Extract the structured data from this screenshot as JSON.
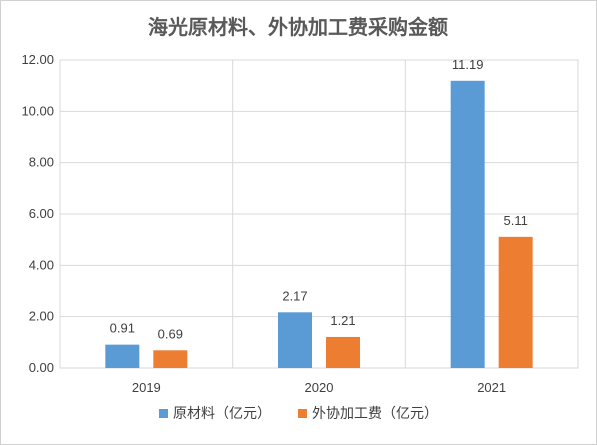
{
  "chart_data": {
    "type": "bar",
    "title": "海光原材料、外协加工费采购金额",
    "categories": [
      "2019",
      "2020",
      "2021"
    ],
    "ylim": [
      0,
      12
    ],
    "yticks": [
      "0.00",
      "2.00",
      "4.00",
      "6.00",
      "8.00",
      "10.00",
      "12.00"
    ],
    "grid": true,
    "legend_position": "bottom",
    "series": [
      {
        "name": "原材料（亿元）",
        "values": [
          0.91,
          2.17,
          11.19
        ],
        "labels": [
          "0.91",
          "2.17",
          "11.19"
        ],
        "color": "#5B9BD5"
      },
      {
        "name": "外协加工费（亿元）",
        "values": [
          0.69,
          1.21,
          5.11
        ],
        "labels": [
          "0.69",
          "1.21",
          "5.11"
        ],
        "color": "#ED7D31"
      }
    ]
  }
}
